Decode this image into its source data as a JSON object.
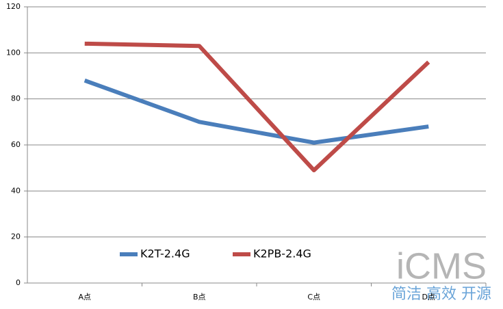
{
  "chart_data": {
    "type": "line",
    "categories": [
      "A点",
      "B点",
      "C点",
      "D点"
    ],
    "series": [
      {
        "name": "K2T-2.4G",
        "color": "#4a7ebb",
        "values": [
          88,
          70,
          61,
          68
        ]
      },
      {
        "name": "K2PB-2.4G",
        "color": "#be4b48",
        "values": [
          104,
          103,
          49,
          96
        ]
      }
    ],
    "ylim": [
      0,
      120
    ],
    "yticks": [
      0,
      20,
      40,
      60,
      80,
      100,
      120
    ],
    "grid": true,
    "legend": "bottom-left",
    "watermark": {
      "logo": "iCMS",
      "slogan": "简洁 高效 开源"
    }
  }
}
